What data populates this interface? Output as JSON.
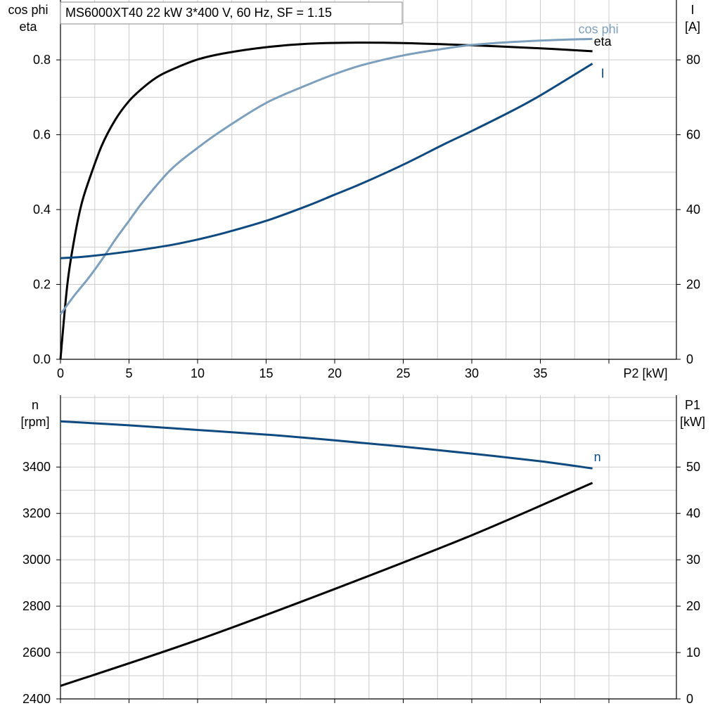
{
  "title": "MS6000XT40   22 kW   3*400 V, 60 Hz, SF = 1.15",
  "colors": {
    "dark_blue": "#0e4a80",
    "light_blue": "#7d9fbe",
    "black": "#000000",
    "grid": "#cccccc"
  },
  "chart_data": [
    {
      "type": "line",
      "xlabel": "P2 [kW]",
      "xlim": [
        0,
        40
      ],
      "xticks": [
        0,
        5,
        10,
        15,
        20,
        25,
        30,
        35
      ],
      "y_left_label": [
        "cos phi",
        "eta"
      ],
      "y_left_lim": [
        0,
        0.96
      ],
      "y_left_ticks": [
        0.0,
        0.2,
        0.4,
        0.6,
        0.8
      ],
      "y_left_tick_labels": [
        "0.0",
        "0.2",
        "0.4",
        "0.6",
        "0.8"
      ],
      "y_right_label": [
        "I",
        "[A]"
      ],
      "y_right_lim": [
        0,
        96
      ],
      "y_right_ticks": [
        0,
        20,
        40,
        60,
        80
      ],
      "y_right_tick_labels": [
        "0",
        "20",
        "40",
        "60",
        "80"
      ],
      "grid": true,
      "series": [
        {
          "name": "eta",
          "axis": "left",
          "color": "#000000",
          "x": [
            0,
            0.5,
            1,
            1.5,
            2,
            3,
            4,
            5,
            6,
            7,
            8,
            10,
            12,
            15,
            18,
            21,
            25,
            30,
            35,
            38.8
          ],
          "y": [
            0.0,
            0.2,
            0.32,
            0.41,
            0.47,
            0.57,
            0.64,
            0.69,
            0.725,
            0.753,
            0.772,
            0.801,
            0.818,
            0.834,
            0.843,
            0.846,
            0.845,
            0.839,
            0.831,
            0.823
          ]
        },
        {
          "name": "cos phi",
          "axis": "left",
          "color": "#7d9fbe",
          "x": [
            0,
            1,
            2,
            3,
            4,
            5,
            6,
            8,
            10,
            12,
            15,
            18,
            20,
            22,
            25,
            28,
            30,
            33,
            36,
            38.8
          ],
          "y": [
            0.12,
            0.17,
            0.215,
            0.265,
            0.32,
            0.37,
            0.42,
            0.505,
            0.565,
            0.617,
            0.685,
            0.733,
            0.762,
            0.786,
            0.812,
            0.83,
            0.84,
            0.848,
            0.853,
            0.856
          ]
        },
        {
          "name": "I",
          "axis": "right",
          "color": "#0e4a80",
          "x": [
            0,
            2,
            5,
            8,
            10,
            12,
            15,
            18,
            20,
            22,
            25,
            28,
            30,
            33,
            35,
            38.8
          ],
          "y": [
            27.0,
            27.5,
            28.8,
            30.5,
            32.0,
            33.8,
            37.0,
            41.0,
            44.0,
            47.0,
            52.0,
            57.5,
            61.0,
            66.5,
            70.5,
            79.0
          ]
        }
      ]
    },
    {
      "type": "line",
      "xlim": [
        0,
        40
      ],
      "xticks": [
        0,
        5,
        10,
        15,
        20,
        25,
        30,
        35
      ],
      "y_left_label": [
        "n",
        "[rpm]"
      ],
      "y_left_lim": [
        2400,
        3710
      ],
      "y_left_ticks": [
        2400,
        2600,
        2800,
        3000,
        3200,
        3400
      ],
      "y_left_tick_labels": [
        "2400",
        "2600",
        "2800",
        "3000",
        "3200",
        "3400"
      ],
      "y_right_label": [
        "P1",
        "[kW]"
      ],
      "y_right_lim": [
        0,
        65.5
      ],
      "y_right_ticks": [
        0,
        10,
        20,
        30,
        40,
        50
      ],
      "y_right_tick_labels": [
        "0",
        "10",
        "20",
        "30",
        "40",
        "50"
      ],
      "grid": true,
      "series": [
        {
          "name": "n",
          "axis": "left",
          "color": "#0e4a80",
          "x": [
            0,
            5,
            10,
            15,
            20,
            25,
            30,
            35,
            38.8
          ],
          "y": [
            3597,
            3580,
            3560,
            3540,
            3515,
            3488,
            3458,
            3425,
            3394
          ]
        },
        {
          "name": "",
          "axis": "right",
          "color": "#000000",
          "x": [
            0,
            10,
            20,
            30,
            38.8
          ],
          "y": [
            2.8,
            12.7,
            23.7,
            35.3,
            46.6
          ]
        }
      ]
    }
  ]
}
